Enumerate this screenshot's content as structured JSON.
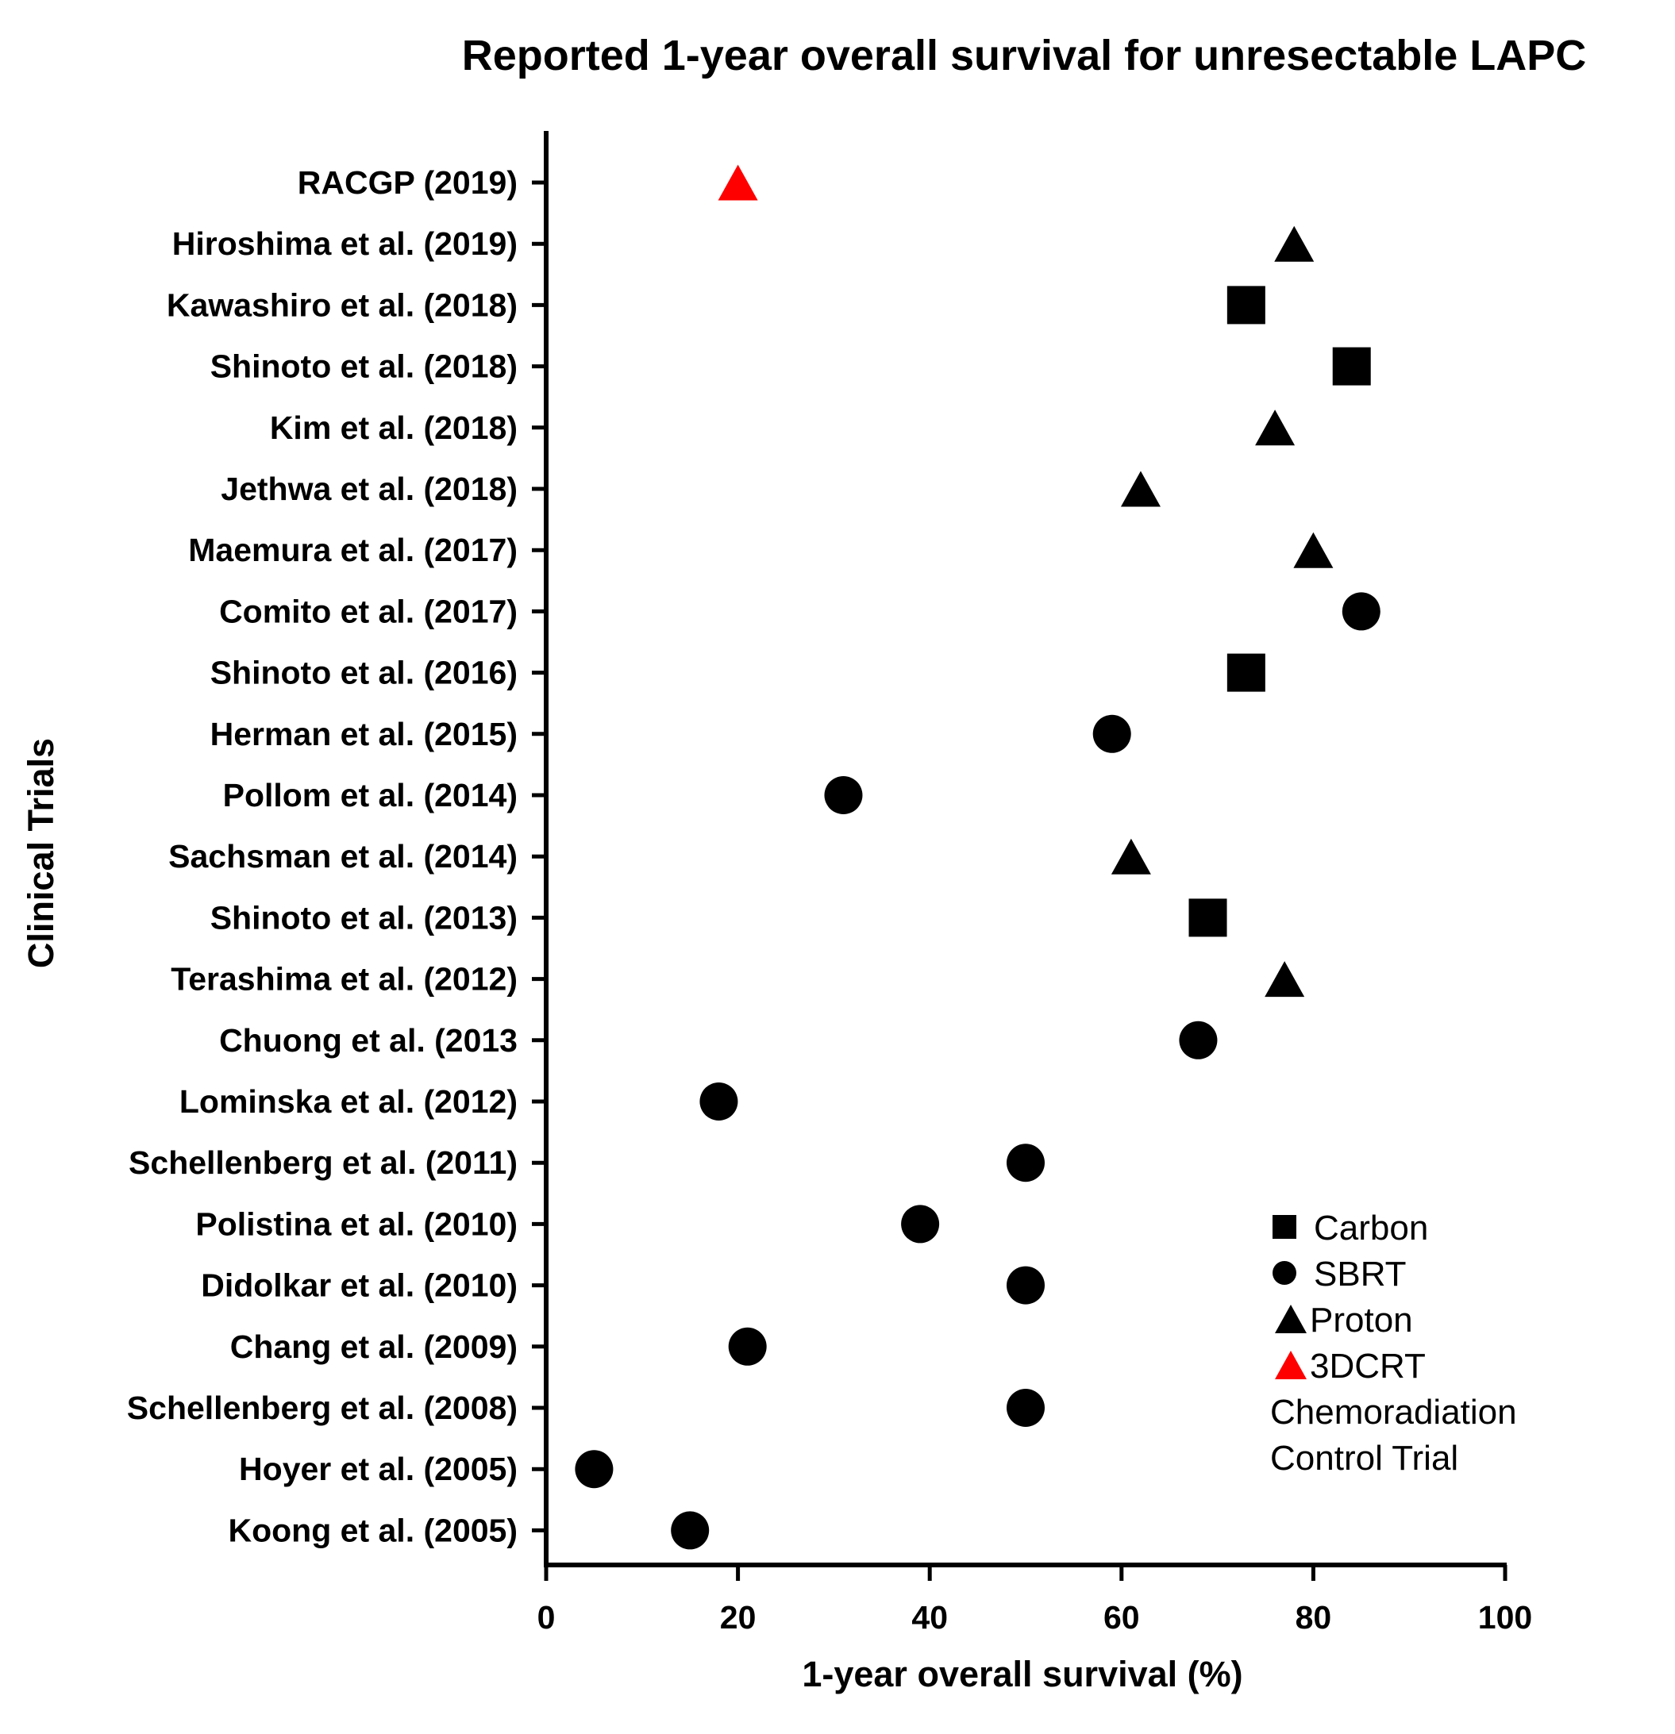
{
  "colors": {
    "default_marker": "#000000",
    "highlight_marker": "#ff0000"
  },
  "chart_data": {
    "type": "scatter",
    "title": "Reported 1-year overall survival for unresectable LAPC",
    "xlabel": "1-year overall survival (%)",
    "ylabel": "Clinical Trials",
    "xlim": [
      0,
      100
    ],
    "xticks": [
      0,
      20,
      40,
      60,
      80,
      100
    ],
    "grid": false,
    "legend_position": "bottom-right",
    "legend": [
      {
        "label": "Carbon",
        "marker": "square",
        "color": "#000000"
      },
      {
        "label": "SBRT",
        "marker": "circle",
        "color": "#000000"
      },
      {
        "label": "Proton",
        "marker": "triangle",
        "color": "#000000"
      },
      {
        "label": "3DCRT",
        "marker": "triangle",
        "color": "#ff0000"
      }
    ],
    "legend_note": [
      "Chemoradiation",
      "Control Trial"
    ],
    "points": [
      {
        "study": "RACGP (2019)",
        "value": 20,
        "marker": "triangle",
        "color": "#ff0000"
      },
      {
        "study": "Hiroshima et al. (2019)",
        "value": 78,
        "marker": "triangle",
        "color": "#000000"
      },
      {
        "study": "Kawashiro et al. (2018)",
        "value": 73,
        "marker": "square",
        "color": "#000000"
      },
      {
        "study": "Shinoto et al. (2018)",
        "value": 84,
        "marker": "square",
        "color": "#000000"
      },
      {
        "study": "Kim et al. (2018)",
        "value": 76,
        "marker": "triangle",
        "color": "#000000"
      },
      {
        "study": "Jethwa et al. (2018)",
        "value": 62,
        "marker": "triangle",
        "color": "#000000"
      },
      {
        "study": "Maemura et al. (2017)",
        "value": 80,
        "marker": "triangle",
        "color": "#000000"
      },
      {
        "study": "Comito et al. (2017)",
        "value": 85,
        "marker": "circle",
        "color": "#000000"
      },
      {
        "study": "Shinoto et al. (2016)",
        "value": 73,
        "marker": "square",
        "color": "#000000"
      },
      {
        "study": "Herman et al. (2015)",
        "value": 59,
        "marker": "circle",
        "color": "#000000"
      },
      {
        "study": "Pollom et al. (2014)",
        "value": 31,
        "marker": "circle",
        "color": "#000000"
      },
      {
        "study": "Sachsman et al. (2014)",
        "value": 61,
        "marker": "triangle",
        "color": "#000000"
      },
      {
        "study": "Shinoto et al. (2013)",
        "value": 69,
        "marker": "square",
        "color": "#000000"
      },
      {
        "study": "Terashima et al. (2012)",
        "value": 77,
        "marker": "triangle",
        "color": "#000000"
      },
      {
        "study": "Chuong et al. (2013",
        "value": 68,
        "marker": "circle",
        "color": "#000000"
      },
      {
        "study": "Lominska et al. (2012)",
        "value": 18,
        "marker": "circle",
        "color": "#000000"
      },
      {
        "study": "Schellenberg et al. (2011)",
        "value": 50,
        "marker": "circle",
        "color": "#000000"
      },
      {
        "study": "Polistina et al. (2010)",
        "value": 39,
        "marker": "circle",
        "color": "#000000"
      },
      {
        "study": "Didolkar et al. (2010)",
        "value": 50,
        "marker": "circle",
        "color": "#000000"
      },
      {
        "study": "Chang et al. (2009)",
        "value": 21,
        "marker": "circle",
        "color": "#000000"
      },
      {
        "study": "Schellenberg et al. (2008)",
        "value": 50,
        "marker": "circle",
        "color": "#000000"
      },
      {
        "study": "Hoyer et al. (2005)",
        "value": 5,
        "marker": "circle",
        "color": "#000000"
      },
      {
        "study": "Koong et al. (2005)",
        "value": 15,
        "marker": "circle",
        "color": "#000000"
      }
    ]
  }
}
